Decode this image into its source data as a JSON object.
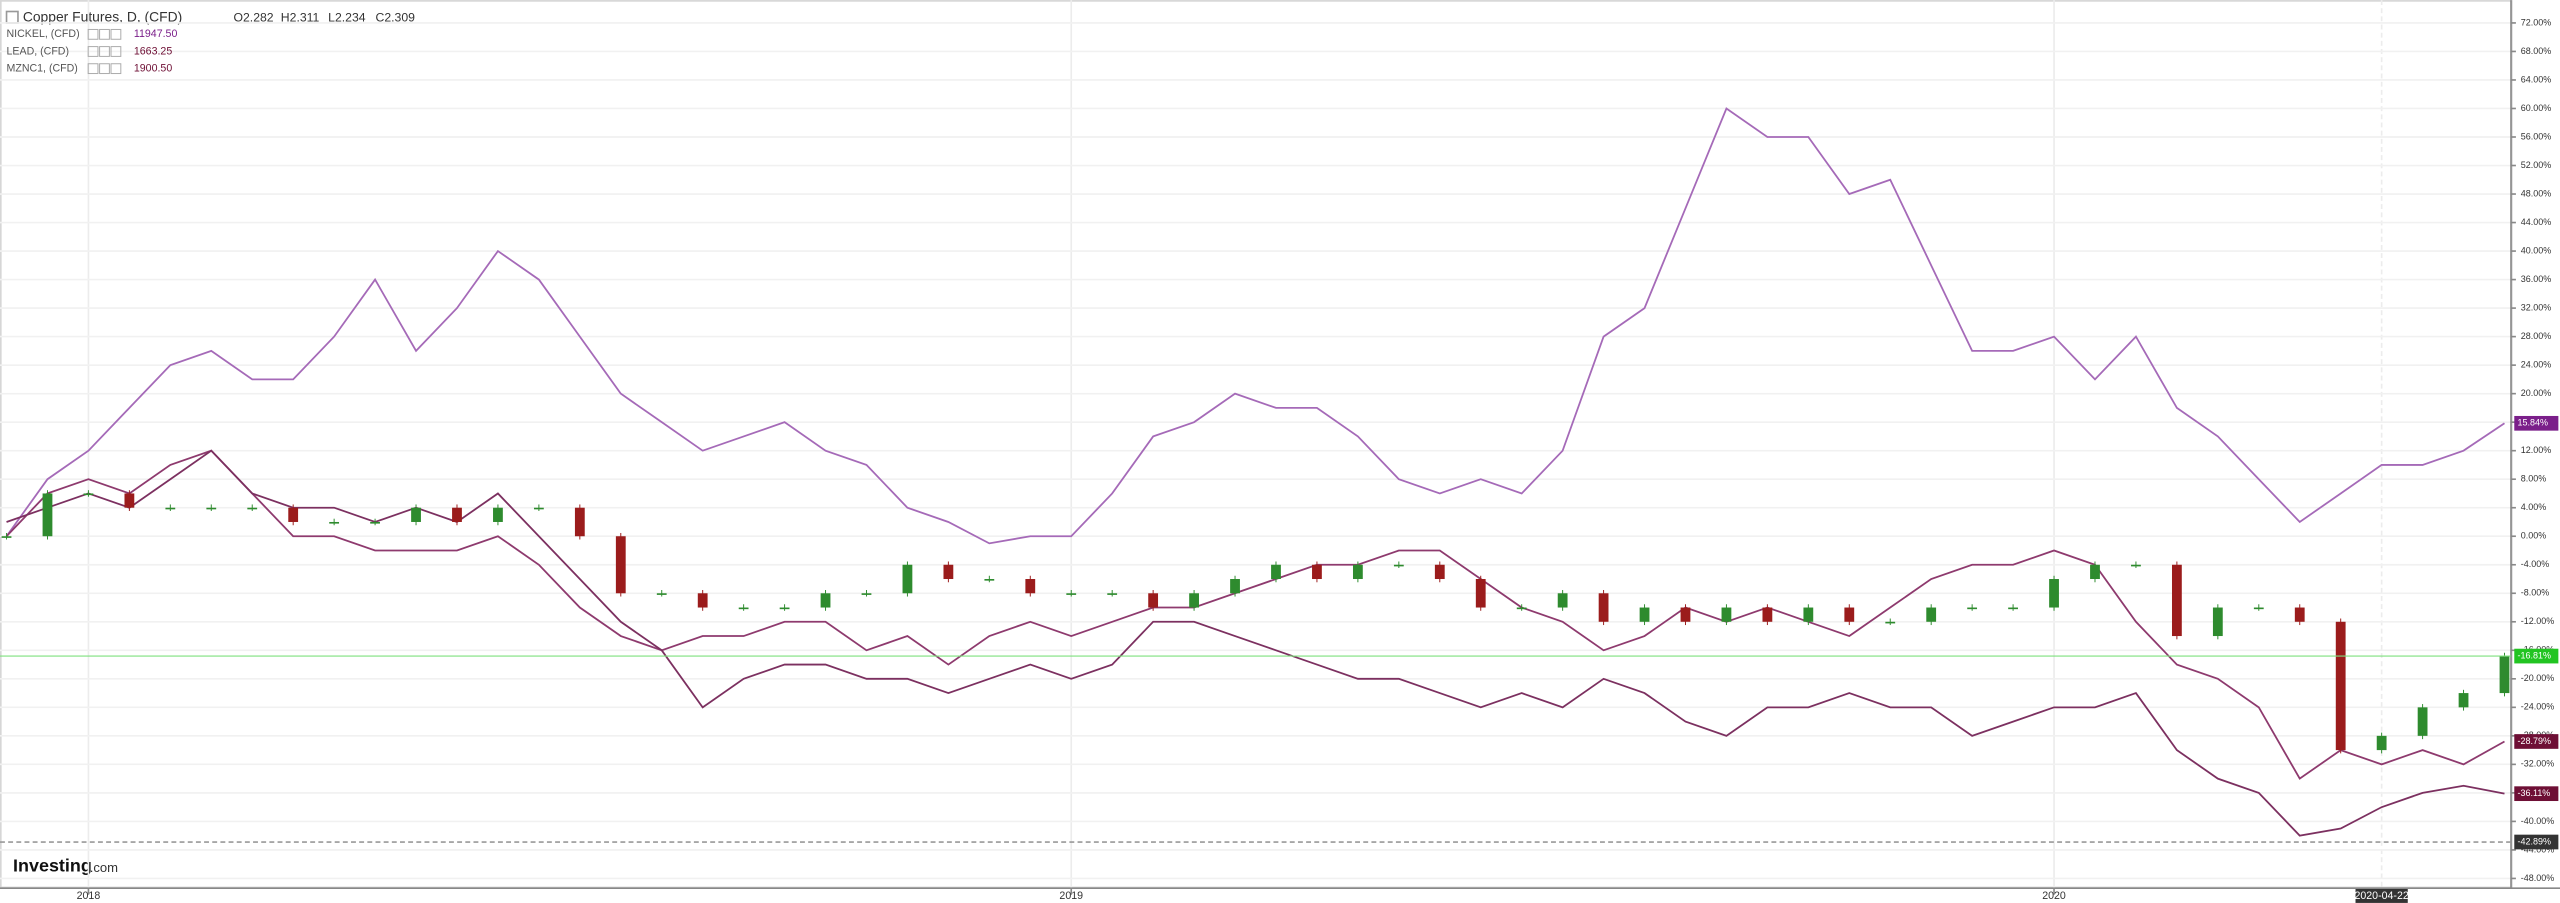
{
  "chart_data": {
    "type": "line",
    "header": {
      "title": "Copper Futures, D, (CFD)",
      "ohlc": [
        "O2.282",
        "H2.311",
        "L2.234",
        "C2.309"
      ]
    },
    "watermark": [
      "Investing",
      ".com"
    ],
    "categories": [
      null,
      null,
      "2018",
      null,
      null,
      null,
      null,
      null,
      null,
      null,
      null,
      null,
      null,
      null,
      null,
      null,
      null,
      null,
      null,
      null,
      null,
      null,
      null,
      null,
      null,
      null,
      "2019",
      null,
      null,
      null,
      null,
      null,
      null,
      null,
      null,
      null,
      null,
      null,
      null,
      null,
      null,
      null,
      null,
      null,
      null,
      null,
      null,
      null,
      null,
      null,
      "2020",
      null,
      null,
      null,
      null,
      null,
      null,
      null,
      "2020-04-22",
      null,
      null,
      null
    ],
    "ylim": [
      -48,
      72
    ],
    "yticks": [
      {
        "value": 72,
        "label": "72.00%"
      },
      {
        "value": 68,
        "label": "68.00%"
      },
      {
        "value": 64,
        "label": "64.00%"
      },
      {
        "value": 60,
        "label": "60.00%"
      },
      {
        "value": 56,
        "label": "56.00%"
      },
      {
        "value": 52,
        "label": "52.00%"
      },
      {
        "value": 48,
        "label": "48.00%"
      },
      {
        "value": 44,
        "label": "44.00%"
      },
      {
        "value": 40,
        "label": "40.00%"
      },
      {
        "value": 36,
        "label": "36.00%"
      },
      {
        "value": 32,
        "label": "32.00%"
      },
      {
        "value": 28,
        "label": "28.00%"
      },
      {
        "value": 24,
        "label": "24.00%"
      },
      {
        "value": 20,
        "label": "20.00%"
      },
      {
        "value": 16,
        "label": "16.00%"
      },
      {
        "value": 12,
        "label": "12.00%"
      },
      {
        "value": 8,
        "label": "8.00%"
      },
      {
        "value": 4,
        "label": "4.00%"
      },
      {
        "value": 0,
        "label": "0.00%"
      },
      {
        "value": -4,
        "label": "-4.00%"
      },
      {
        "value": -8,
        "label": "-8.00%"
      },
      {
        "value": -12,
        "label": "-12.00%"
      },
      {
        "value": -16,
        "label": "-16.00%"
      },
      {
        "value": -20,
        "label": "-20.00%"
      },
      {
        "value": -24,
        "label": "-24.00%"
      },
      {
        "value": -28,
        "label": "-28.00%"
      },
      {
        "value": -32,
        "label": "-32.00%"
      },
      {
        "value": -36,
        "label": "-36.00%"
      },
      {
        "value": -40,
        "label": "-40.00%"
      },
      {
        "value": -44,
        "label": "-44.00%"
      },
      {
        "value": -48,
        "label": "-48.00%"
      }
    ],
    "grid": true,
    "crosshair": {
      "value": -42.89,
      "label": "-42.89%"
    },
    "series": [
      {
        "name": "NICKEL, (CFD)",
        "price": "11947.50",
        "color": "#a56ab8",
        "style": "line",
        "values": [
          0,
          8,
          12,
          18,
          24,
          26,
          22,
          22,
          28,
          36,
          26,
          32,
          40,
          36,
          28,
          20,
          16,
          12,
          14,
          16,
          12,
          10,
          4,
          2,
          -1,
          0,
          0,
          6,
          14,
          16,
          20,
          18,
          18,
          14,
          8,
          6,
          8,
          6,
          12,
          28,
          32,
          46,
          60,
          56,
          56,
          48,
          50,
          38,
          26,
          26,
          28,
          22,
          28,
          18,
          14,
          8,
          2,
          6,
          10,
          10,
          12,
          15.84
        ],
        "last_value": {
          "value": 15.84,
          "label": "15.84%"
        },
        "label_color": "#7b1f8a"
      },
      {
        "name": "LEAD, (CFD)",
        "price": "1663.25",
        "color": "#8e3a6e",
        "style": "line",
        "values": [
          0,
          6,
          8,
          6,
          10,
          12,
          6,
          0,
          0,
          -2,
          -2,
          -2,
          0,
          -4,
          -10,
          -14,
          -16,
          -14,
          -14,
          -12,
          -12,
          -16,
          -14,
          -18,
          -14,
          -12,
          -14,
          -12,
          -10,
          -10,
          -8,
          -6,
          -4,
          -4,
          -2,
          -2,
          -6,
          -10,
          -12,
          -16,
          -14,
          -10,
          -12,
          -10,
          -12,
          -14,
          -10,
          -6,
          -4,
          -4,
          -2,
          -4,
          -12,
          -18,
          -20,
          -24,
          -34,
          -30,
          -32,
          -30,
          -32,
          -28.79
        ],
        "last_value": {
          "value": -28.79,
          "label": "-28.79%"
        },
        "label_color": "#6e0f35"
      },
      {
        "name": "MZNC1, (CFD)",
        "price": "1900.50",
        "color": "#7c3060",
        "style": "line",
        "values": [
          2,
          4,
          6,
          4,
          8,
          12,
          6,
          4,
          4,
          2,
          4,
          2,
          6,
          0,
          -6,
          -12,
          -16,
          -24,
          -20,
          -18,
          -18,
          -20,
          -20,
          -22,
          -20,
          -18,
          -20,
          -18,
          -12,
          -12,
          -14,
          -16,
          -18,
          -20,
          -20,
          -22,
          -24,
          -22,
          -24,
          -20,
          -22,
          -26,
          -28,
          -24,
          -24,
          -22,
          -24,
          -24,
          -28,
          -26,
          -24,
          -24,
          -22,
          -30,
          -34,
          -36,
          -42,
          -41,
          -38,
          -36,
          -35,
          -36.11
        ],
        "last_value": {
          "value": -36.11,
          "label": "-36.11%"
        },
        "label_color": "#6e0f35"
      },
      {
        "name": "Copper Futures, D, (CFD)",
        "color": "#2e8b2e",
        "down_color": "#9b1c1c",
        "style": "candle",
        "values": [
          0,
          6,
          6,
          4,
          4,
          4,
          4,
          2,
          2,
          2,
          4,
          2,
          4,
          4,
          0,
          -8,
          -8,
          -10,
          -10,
          -10,
          -8,
          -8,
          -4,
          -6,
          -6,
          -8,
          -8,
          -8,
          -10,
          -8,
          -6,
          -4,
          -6,
          -4,
          -4,
          -6,
          -10,
          -10,
          -8,
          -12,
          -10,
          -12,
          -10,
          -12,
          -10,
          -12,
          -12,
          -10,
          -10,
          -10,
          -6,
          -4,
          -4,
          -14,
          -10,
          -10,
          -12,
          -30,
          -28,
          -24,
          -22,
          -16.81
        ],
        "last_value": {
          "value": -16.81,
          "label": "-16.81%"
        },
        "label_color": "#22c422"
      }
    ]
  }
}
